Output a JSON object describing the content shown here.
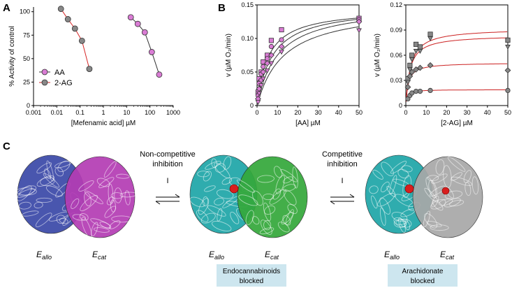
{
  "panel_labels": {
    "a": "A",
    "b": "B",
    "c": "C"
  },
  "colors": {
    "aa": "#d97cd4",
    "two_ag": "#888888",
    "aa_line": "#d62728",
    "two_ag_line": "#333333",
    "fit_b": "#333333",
    "fit_b2": "#cc2222",
    "label_box": "#cde6ef",
    "blue": "#3a48a8",
    "magenta": "#b43cb4",
    "cyan": "#1ea5a8",
    "green": "#34a83a",
    "gray": "#a8a8a8",
    "ligand": "#d81e1e"
  },
  "chart_data": [
    {
      "id": "A",
      "type": "line",
      "xscale": "log",
      "xlim": [
        0.001,
        1000
      ],
      "ylim": [
        0,
        105
      ],
      "xlabel": "[Mefenamic acid] µM",
      "ylabel": "% Activity of control",
      "xticks": [
        "0.001",
        "0.01",
        "0.1",
        "1",
        "10",
        "100",
        "1000"
      ],
      "yticks": [
        "0",
        "25",
        "50",
        "75",
        "100"
      ],
      "legend_position": "bottom-left",
      "series": [
        {
          "name": "AA",
          "x": [
            15,
            30,
            60,
            120,
            250
          ],
          "y": [
            94,
            87,
            78,
            57,
            33
          ]
        },
        {
          "name": "2-AG",
          "x": [
            0.015,
            0.03,
            0.06,
            0.12,
            0.25
          ],
          "y": [
            103,
            92,
            82,
            69,
            39
          ]
        }
      ]
    },
    {
      "id": "B1",
      "type": "scatter",
      "xlim": [
        0,
        50
      ],
      "ylim": [
        0,
        0.15
      ],
      "xlabel": "[AA] µM",
      "ylabel": "v (µM O₂/min)",
      "xticks": [
        "0",
        "10",
        "20",
        "30",
        "40",
        "50"
      ],
      "yticks": [
        "0",
        "0.05",
        "0.10",
        "0.15"
      ],
      "series": [
        {
          "marker": "square",
          "x": [
            0.5,
            1,
            2,
            3,
            5,
            7,
            12,
            50
          ],
          "y": [
            0.02,
            0.04,
            0.05,
            0.065,
            0.075,
            0.097,
            0.113,
            0.13
          ]
        },
        {
          "marker": "circle",
          "x": [
            0.5,
            1,
            2,
            3,
            5,
            7,
            12,
            50
          ],
          "y": [
            0.015,
            0.033,
            0.047,
            0.058,
            0.07,
            0.088,
            0.098,
            0.128
          ]
        },
        {
          "marker": "diamond",
          "x": [
            0.5,
            1,
            2,
            3,
            5,
            7,
            12,
            50
          ],
          "y": [
            0.01,
            0.025,
            0.038,
            0.05,
            0.063,
            0.075,
            0.088,
            0.125
          ]
        },
        {
          "marker": "triangle",
          "x": [
            0.5,
            1,
            2,
            3,
            5,
            7,
            12,
            50
          ],
          "y": [
            0.005,
            0.018,
            0.03,
            0.04,
            0.052,
            0.063,
            0.08,
            0.112
          ]
        }
      ]
    },
    {
      "id": "B2",
      "type": "scatter",
      "xlim": [
        0,
        50
      ],
      "ylim": [
        0,
        0.12
      ],
      "xlabel": "[2-AG] µM",
      "ylabel": "v (µM O₂/min)",
      "xticks": [
        "0",
        "10",
        "20",
        "30",
        "40",
        "50"
      ],
      "yticks": [
        "0",
        "0.03",
        "0.06",
        "0.09",
        "0.12"
      ],
      "series": [
        {
          "marker": "square",
          "x": [
            1,
            2,
            3,
            5,
            7,
            12,
            50
          ],
          "y": [
            0.032,
            0.048,
            0.06,
            0.073,
            0.07,
            0.085,
            0.078
          ]
        },
        {
          "marker": "triangle",
          "x": [
            1,
            2,
            3,
            5,
            7,
            12,
            50
          ],
          "y": [
            0.028,
            0.043,
            0.055,
            0.065,
            0.065,
            0.08,
            0.07
          ]
        },
        {
          "marker": "diamond",
          "x": [
            1,
            2,
            3,
            5,
            7,
            12,
            50
          ],
          "y": [
            0.022,
            0.035,
            0.04,
            0.043,
            0.045,
            0.048,
            0.042
          ]
        },
        {
          "marker": "circle",
          "x": [
            1,
            2,
            3,
            5,
            7,
            12,
            50
          ],
          "y": [
            0.008,
            0.012,
            0.015,
            0.017,
            0.017,
            0.018,
            0.018
          ]
        }
      ]
    }
  ],
  "panel_c": {
    "step1_label": "Non-competitive\ninhibition",
    "step2_label": "Competitive\ninhibition",
    "inhibitor": "I",
    "subunit_allo": [
      "E",
      "allo"
    ],
    "subunit_cat": [
      "E",
      "cat"
    ],
    "box1": "Endocannabinoids\nblocked",
    "box2": "Arachidonate\nblocked"
  }
}
